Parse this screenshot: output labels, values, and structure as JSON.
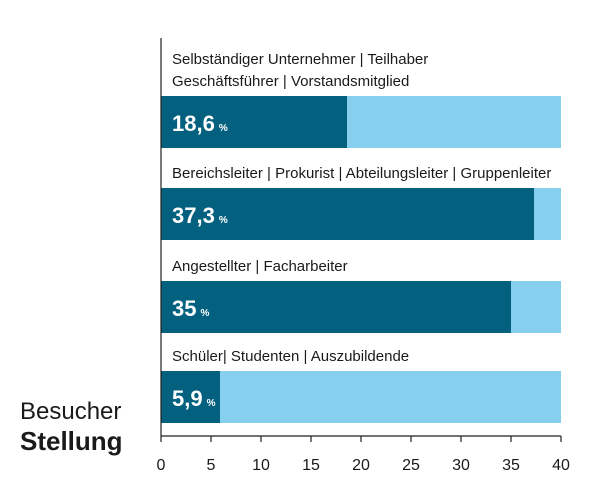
{
  "chart_data": {
    "type": "bar",
    "orientation": "horizontal",
    "title": "Besucher",
    "subtitle": "Stellung",
    "categories": [
      [
        "Selbständiger Unternehmer | Teilhaber",
        "Geschäftsführer | Vorstandsmitglied"
      ],
      [
        "Bereichsleiter | Prokurist | Abteilungsleiter | Gruppenleiter"
      ],
      [
        "Angestellter | Facharbeiter"
      ],
      [
        "Schüler| Studenten | Auszubildende"
      ]
    ],
    "values": [
      18.6,
      37.3,
      35,
      5.9
    ],
    "value_labels": [
      "18,6",
      "37,3",
      "35",
      "5,9"
    ],
    "unit": "%",
    "xlim": [
      0,
      40
    ],
    "xticks": [
      "0",
      "5",
      "10",
      "15",
      "20",
      "25",
      "30",
      "35",
      "40"
    ],
    "grid": false,
    "colors": {
      "bar": "#03607f",
      "track": "#87cfee",
      "axis": "#222222",
      "value_text": "#ffffff",
      "label_text": "#1a1a1a"
    }
  }
}
